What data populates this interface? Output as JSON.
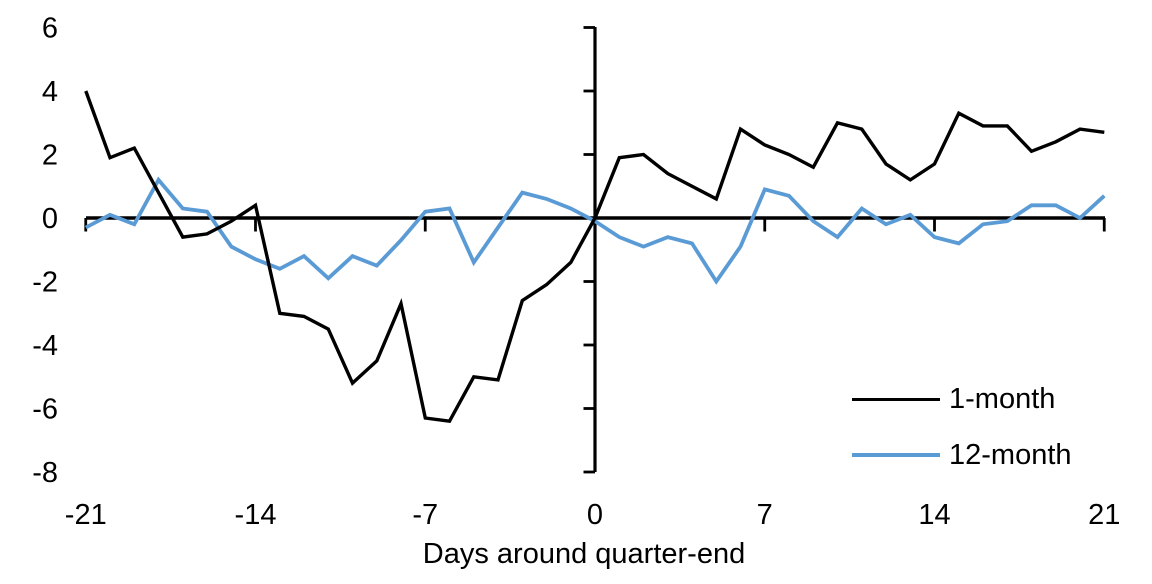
{
  "chart_data": {
    "type": "line",
    "title": "",
    "xlabel": "Days around quarter-end",
    "ylabel": "",
    "xlim": [
      -21,
      21
    ],
    "ylim": [
      -8,
      6
    ],
    "x_ticks": [
      -21,
      -14,
      -7,
      0,
      7,
      14,
      21
    ],
    "y_ticks": [
      6,
      4,
      2,
      0,
      -2,
      -4,
      -6,
      -8
    ],
    "grid": false,
    "legend_position": "inside-bottom-right",
    "axis_color": "#000000",
    "x": [
      -21,
      -20,
      -19,
      -18,
      -17,
      -16,
      -15,
      -14,
      -13,
      -12,
      -11,
      -10,
      -9,
      -8,
      -7,
      -6,
      -5,
      -4,
      -3,
      -2,
      -1,
      0,
      1,
      2,
      3,
      4,
      5,
      6,
      7,
      8,
      9,
      10,
      11,
      12,
      13,
      14,
      15,
      16,
      17,
      18,
      19,
      20,
      21
    ],
    "series": [
      {
        "name": "1-month",
        "color": "#000000",
        "values": [
          4.0,
          1.9,
          2.2,
          0.8,
          -0.6,
          -0.5,
          -0.1,
          0.4,
          -3.0,
          -3.1,
          -3.5,
          -5.2,
          -4.5,
          -2.7,
          -6.3,
          -6.4,
          -5.0,
          -5.1,
          -2.6,
          -2.1,
          -1.4,
          0.0,
          1.9,
          2.0,
          1.4,
          1.0,
          0.6,
          2.8,
          2.3,
          2.0,
          1.6,
          3.0,
          2.8,
          1.7,
          1.2,
          1.7,
          3.3,
          2.9,
          2.9,
          2.1,
          2.4,
          2.8,
          2.7
        ]
      },
      {
        "name": "12-month",
        "color": "#5B9BD5",
        "values": [
          -0.3,
          0.1,
          -0.2,
          1.2,
          0.3,
          0.2,
          -0.9,
          -1.3,
          -1.6,
          -1.2,
          -1.9,
          -1.2,
          -1.5,
          -0.7,
          0.2,
          0.3,
          -1.4,
          -0.3,
          0.8,
          0.6,
          0.3,
          -0.1,
          -0.6,
          -0.9,
          -0.6,
          -0.8,
          -2.0,
          -0.9,
          0.9,
          0.7,
          -0.1,
          -0.6,
          0.3,
          -0.2,
          0.1,
          -0.6,
          -0.8,
          -0.2,
          -0.1,
          0.4,
          0.4,
          0.0,
          0.7
        ]
      }
    ]
  }
}
